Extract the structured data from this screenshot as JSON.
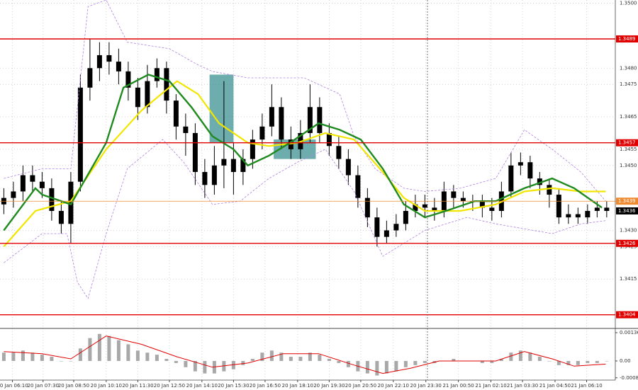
{
  "chart_data": [
    {
      "type": "candlestick",
      "color": "#000000",
      "grid": true,
      "xlim": [
        -0.4,
        63.9
      ],
      "ylim": [
        1.34,
        1.3501
      ],
      "xticks": [
        {
          "value": 0.9,
          "label": "20 Jan 06:10"
        },
        {
          "value": 4.1,
          "label": "20 Jan 07:30"
        },
        {
          "value": 7.3,
          "label": "20 Jan 08:50"
        },
        {
          "value": 10.7,
          "label": "20 Jan 10:10"
        },
        {
          "value": 14,
          "label": "20 Jan 11:30"
        },
        {
          "value": 17.3,
          "label": "20 Jan 12:50"
        },
        {
          "value": 20.7,
          "label": "20 Jan 14:10"
        },
        {
          "value": 24,
          "label": "20 Jan 15:30"
        },
        {
          "value": 27.3,
          "label": "20 Jan 16:50"
        },
        {
          "value": 30.7,
          "label": "20 Jan 18:10"
        },
        {
          "value": 34,
          "label": "20 Jan 19:30"
        },
        {
          "value": 37.3,
          "label": "20 Jan 20:50"
        },
        {
          "value": 40.7,
          "label": "20 Jan 22:10"
        },
        {
          "value": 44.1,
          "label": "20 Jan 23:30"
        },
        {
          "value": 47.5,
          "label": "21 Jan 00:50"
        },
        {
          "value": 50.9,
          "label": "21 Jan 02:10"
        },
        {
          "value": 54.2,
          "label": "21 Jan 03:30"
        },
        {
          "value": 57.6,
          "label": "21 Jan 04:50"
        },
        {
          "value": 60.9,
          "label": "21 Jan 06:10"
        }
      ],
      "yticks": [
        {
          "value": 1.35,
          "label": "1.3500"
        },
        {
          "value": 1.348,
          "label": "1.3480"
        },
        1.3475,
        1.3465,
        1.3455,
        {
          "value": 1.345,
          "label": "1.3450"
        },
        {
          "value": 1.343,
          "label": "1.3430"
        },
        1.3425,
        1.3415
      ],
      "open": [
        1.3438,
        1.344,
        1.3442,
        1.3447,
        1.3445,
        1.3443,
        1.3436,
        1.3432,
        1.3445,
        1.3474,
        1.348,
        1.3484,
        1.3482,
        1.3479,
        1.3474,
        1.3468,
        1.3476,
        1.348,
        1.347,
        1.3462,
        1.346,
        1.3448,
        1.3444,
        1.345,
        1.3452,
        1.3448,
        1.3452,
        1.3458,
        1.3462,
        1.3468,
        1.3458,
        1.3455,
        1.346,
        1.3468,
        1.346,
        1.3456,
        1.3452,
        1.3447,
        1.344,
        1.3434,
        1.3428,
        1.343,
        1.3432,
        1.3436,
        1.3438,
        1.3437,
        1.3436,
        1.3442,
        1.344,
        1.3439,
        1.3439,
        1.3437,
        1.3436,
        1.3442,
        1.345,
        1.3451,
        1.3446,
        1.3444,
        1.3441,
        1.3434,
        1.3435,
        1.3434,
        1.3436,
        1.3437
      ],
      "high": [
        1.3443,
        1.3445,
        1.345,
        1.345,
        1.3448,
        1.3446,
        1.3439,
        1.3448,
        1.3478,
        1.3489,
        1.3488,
        1.3488,
        1.3486,
        1.3482,
        1.3477,
        1.3481,
        1.3483,
        1.3482,
        1.3472,
        1.3466,
        1.3463,
        1.3452,
        1.3456,
        1.3476,
        1.3457,
        1.3455,
        1.3461,
        1.3466,
        1.3475,
        1.3471,
        1.3462,
        1.3464,
        1.3475,
        1.3471,
        1.3463,
        1.3459,
        1.3455,
        1.345,
        1.3443,
        1.3437,
        1.3433,
        1.3435,
        1.3439,
        1.3441,
        1.3441,
        1.344,
        1.3445,
        1.3444,
        1.3442,
        1.3441,
        1.3441,
        1.344,
        1.3445,
        1.3454,
        1.3454,
        1.3453,
        1.3448,
        1.3446,
        1.3443,
        1.3438,
        1.3437,
        1.3438,
        1.3439,
        1.3439
      ],
      "low": [
        1.3435,
        1.3437,
        1.3439,
        1.3442,
        1.344,
        1.3433,
        1.3429,
        1.3426,
        1.3442,
        1.347,
        1.3476,
        1.3478,
        1.3475,
        1.347,
        1.3464,
        1.3466,
        1.3474,
        1.3466,
        1.3458,
        1.3453,
        1.3444,
        1.344,
        1.3441,
        1.3443,
        1.3441,
        1.3444,
        1.3449,
        1.3455,
        1.3459,
        1.3455,
        1.3452,
        1.3452,
        1.3457,
        1.3457,
        1.3453,
        1.3449,
        1.3444,
        1.3437,
        1.3431,
        1.3425,
        1.3426,
        1.3428,
        1.343,
        1.3434,
        1.3434,
        1.3433,
        1.3434,
        1.3437,
        1.3437,
        1.3436,
        1.3434,
        1.3433,
        1.3434,
        1.344,
        1.3447,
        1.3443,
        1.3441,
        1.3437,
        1.3432,
        1.3432,
        1.3432,
        1.3432,
        1.3434,
        1.3434
      ],
      "close": [
        1.344,
        1.3442,
        1.3447,
        1.3445,
        1.3443,
        1.3436,
        1.3432,
        1.3445,
        1.3474,
        1.348,
        1.3484,
        1.3482,
        1.3479,
        1.3474,
        1.3468,
        1.3476,
        1.348,
        1.347,
        1.3462,
        1.346,
        1.3448,
        1.3444,
        1.345,
        1.3452,
        1.3448,
        1.3452,
        1.3458,
        1.3462,
        1.3468,
        1.3458,
        1.3455,
        1.346,
        1.3468,
        1.346,
        1.3456,
        1.3452,
        1.3447,
        1.344,
        1.3434,
        1.3428,
        1.343,
        1.3432,
        1.3436,
        1.3438,
        1.3437,
        1.3436,
        1.3442,
        1.344,
        1.3439,
        1.3439,
        1.3437,
        1.3436,
        1.3442,
        1.345,
        1.3451,
        1.3446,
        1.3444,
        1.3441,
        1.3434,
        1.3435,
        1.3434,
        1.3436,
        1.3437,
        1.3436
      ],
      "lines": [
        {
          "color": "#b080e0",
          "dashed": true,
          "width": 0.8,
          "x": [
            0,
            4,
            7,
            8.8,
            10.7,
            12.9,
            17.3,
            20.3,
            21.8,
            25.5,
            31.4,
            35.1,
            36.6,
            38.8,
            41.8,
            44,
            47.7,
            51.4,
            54.4,
            57.3,
            60.3,
            62.9
          ],
          "values": [
            1.3446,
            1.3449,
            1.3449,
            1.3499,
            1.3501,
            1.3488,
            1.3486,
            1.3481,
            1.3479,
            1.3477,
            1.3477,
            1.3472,
            1.3459,
            1.3449,
            1.3443,
            1.3442,
            1.3443,
            1.3446,
            1.3461,
            1.3455,
            1.3448,
            1.3439
          ]
        },
        {
          "color": "#b080e0",
          "dashed": true,
          "width": 0.8,
          "x": [
            0,
            4,
            6.6,
            7.7,
            8.8,
            10.7,
            12.9,
            16.6,
            18.8,
            21.8,
            24.7,
            27.7,
            30.7,
            33.6,
            36.6,
            39.6,
            41.8,
            44,
            48.4,
            51.4,
            57.3,
            60.3,
            62.9
          ],
          "values": [
            1.342,
            1.3429,
            1.3429,
            1.3414,
            1.3409,
            1.3429,
            1.3449,
            1.3458,
            1.3451,
            1.3438,
            1.3439,
            1.3446,
            1.3451,
            1.3455,
            1.3442,
            1.3422,
            1.3426,
            1.343,
            1.3434,
            1.3432,
            1.3429,
            1.3432,
            1.3433
          ]
        },
        {
          "color": "#f2e600",
          "width": 2.2,
          "x": [
            0,
            3.3,
            7,
            10.7,
            14.4,
            18.1,
            20.3,
            22.5,
            25.5,
            27.7,
            30.7,
            33.6,
            36.6,
            39.6,
            41.8,
            44,
            47.7,
            51.4,
            54.4,
            57.3,
            60.3,
            62.9
          ],
          "values": [
            1.3425,
            1.3436,
            1.3439,
            1.3455,
            1.3467,
            1.3476,
            1.3472,
            1.3463,
            1.3457,
            1.3456,
            1.3457,
            1.346,
            1.3458,
            1.3448,
            1.344,
            1.3436,
            1.3436,
            1.3438,
            1.3442,
            1.3443,
            1.3442,
            1.3442
          ]
        },
        {
          "color": "#1f8a1f",
          "width": 2.4,
          "x": [
            0,
            3.3,
            4,
            7,
            10.7,
            12.5,
            15.1,
            17.3,
            19.6,
            21.8,
            24,
            25.5,
            27.7,
            29.9,
            32.9,
            35.1,
            37.3,
            39.6,
            41.8,
            44,
            46.2,
            49.2,
            51.4,
            54.4,
            57.3,
            59.6,
            62.5
          ],
          "values": [
            1.343,
            1.3443,
            1.3441,
            1.3438,
            1.3457,
            1.3474,
            1.3478,
            1.3476,
            1.3468,
            1.3459,
            1.3455,
            1.345,
            1.3453,
            1.3457,
            1.3463,
            1.3461,
            1.3458,
            1.3449,
            1.3438,
            1.3434,
            1.3436,
            1.3439,
            1.3439,
            1.3443,
            1.3446,
            1.3443,
            1.3437
          ]
        }
      ],
      "boxes": [
        {
          "x": [
            21.5,
            24
          ],
          "y": [
            1.3457,
            1.3478
          ],
          "color": "#2f8a8a"
        },
        {
          "x": [
            28.2,
            32.6
          ],
          "y": [
            1.3452,
            1.3458
          ],
          "color": "#2f8a8a"
        }
      ],
      "levels": [
        {
          "value": 1.3489,
          "color": "#e00000"
        },
        {
          "value": 1.3457,
          "color": "#e00000"
        },
        {
          "value": 1.3426,
          "color": "#e00000"
        },
        {
          "value": 1.3404,
          "color": "#e00000"
        },
        {
          "value": 1.3439,
          "color": "#f08a30"
        },
        {
          "value": 1.3436,
          "color": "#000000",
          "line": false
        }
      ]
    },
    {
      "type": "bar",
      "color": "#a8a8a8",
      "ylim": [
        -0.00092,
        0.00153
      ],
      "yticks": [
        0.00136,
        {
          "value": 0,
          "label": "0.00"
        },
        -0.00081
      ],
      "values": [
        0.0004,
        0.0004,
        0.0005,
        0.0004,
        0.0003,
        0.0002,
        0,
        0,
        0.0006,
        0.0011,
        0.0013,
        0.0012,
        0.001,
        0.0008,
        0.0005,
        0.0004,
        0.0003,
        0.0001,
        -0.0001,
        -0.0003,
        -0.0005,
        -0.0006,
        -0.0006,
        -0.0005,
        -0.0004,
        -0.0002,
        0.0001,
        0.0004,
        0.0005,
        0.0004,
        0.0002,
        0.0002,
        0.0004,
        0.0003,
        0.0001,
        -0.0001,
        -0.0003,
        -0.0005,
        -0.0006,
        -0.0007,
        -0.0006,
        -0.0005,
        -0.0003,
        -0.0002,
        -0.0001,
        -0.0001,
        0,
        0.0001,
        0,
        0,
        -0.0001,
        -0.0001,
        0.0001,
        0.0004,
        0.0005,
        0.0004,
        0.0002,
        0,
        -0.0002,
        -0.0002,
        -0.0002,
        -0.0001,
        -0.0001,
        0
      ],
      "series": [
        {
          "color": "#e00000",
          "x": [
            0,
            4,
            7,
            10.7,
            14.4,
            18.1,
            21.8,
            25.5,
            29.2,
            32.9,
            36.6,
            39.6,
            42.5,
            45.5,
            51.4,
            54.4,
            57.3,
            59.6,
            62.9
          ],
          "values": [
            0.00045,
            0.00035,
            0.0001,
            0.0012,
            0.0008,
            0.0002,
            -0.0003,
            -0.0001,
            0.00035,
            0.00035,
            -0.0002,
            -0.0006,
            -0.00035,
            0,
            0,
            0.00045,
            0.0001,
            -0.00025,
            -0.00015
          ]
        }
      ]
    }
  ]
}
